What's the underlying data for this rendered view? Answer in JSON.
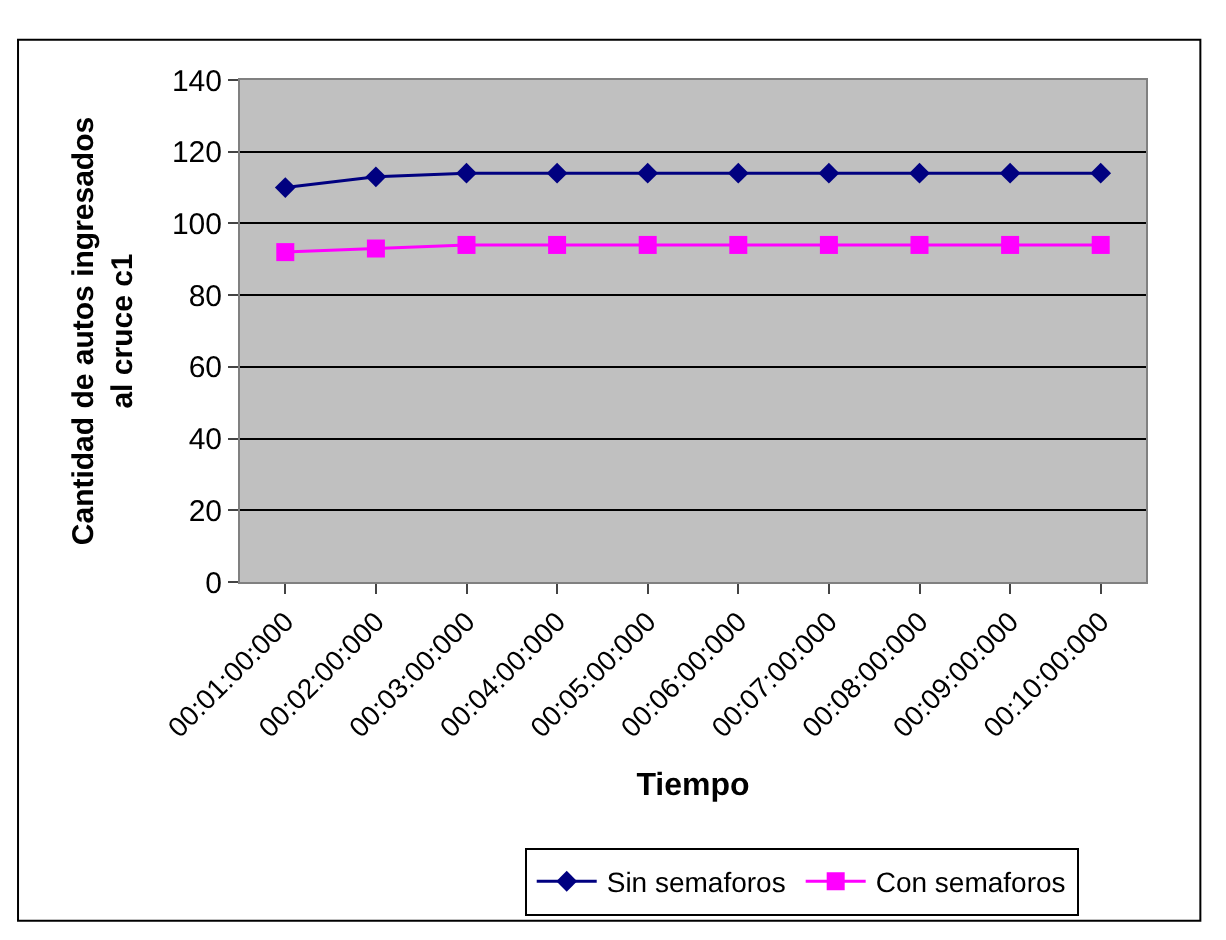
{
  "chart_data": {
    "type": "line",
    "xlabel": "Tiempo",
    "ylabel": "Cantidad de autos ingresados al cruce c1",
    "categories": [
      "00:01:00:000",
      "00:02:00:000",
      "00:03:00:000",
      "00:04:00:000",
      "00:05:00:000",
      "00:06:00:000",
      "00:07:00:000",
      "00:08:00:000",
      "00:09:00:000",
      "00:10:00:000"
    ],
    "series": [
      {
        "name": "Sin semaforos",
        "color": "#000080",
        "marker": "diamond",
        "values": [
          110,
          113,
          114,
          114,
          114,
          114,
          114,
          114,
          114,
          114
        ]
      },
      {
        "name": "Con semaforos",
        "color": "#ff00ff",
        "marker": "square",
        "values": [
          92,
          93,
          94,
          94,
          94,
          94,
          94,
          94,
          94,
          94
        ]
      }
    ],
    "ylim": [
      0,
      140
    ],
    "yticks": [
      0,
      20,
      40,
      60,
      80,
      100,
      120,
      140
    ],
    "grid": "y",
    "legend": "bottom"
  }
}
